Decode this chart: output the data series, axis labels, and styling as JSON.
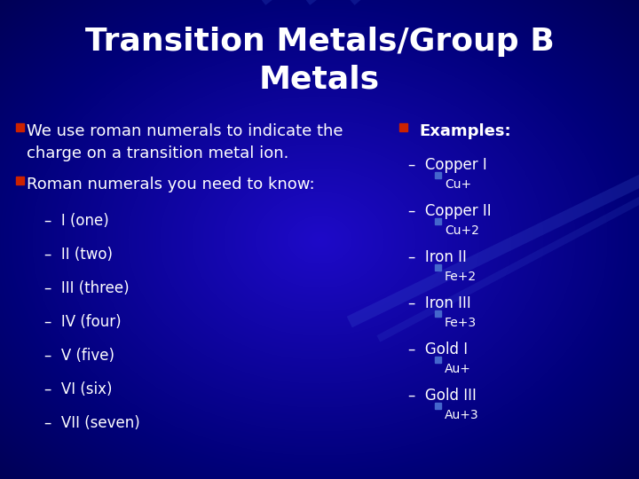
{
  "title_line1": "Transition Metals/Group B",
  "title_line2": "Metals",
  "bg_color": "#0000aa",
  "bg_color_dark": "#000066",
  "text_color": "#ffffff",
  "bullet_color": "#cc2200",
  "blue_sq_color": "#4466cc",
  "title_fontsize": 26,
  "body_fontsize": 13,
  "sub_fontsize": 12,
  "sub2_fontsize": 10,
  "left_bullets": [
    "We use roman numerals to indicate the\ncharge on a transition metal ion.",
    "Roman numerals you need to know:"
  ],
  "left_sub": [
    "I (one)",
    "II (two)",
    "III (three)",
    "IV (four)",
    "V (five)",
    "VI (six)",
    "VII (seven)"
  ],
  "right_header": "Examples:",
  "right_items": [
    {
      "label": "Copper I",
      "sub": "Cu+"
    },
    {
      "label": "Copper II",
      "sub": "Cu+2"
    },
    {
      "label": "Iron II",
      "sub": "Fe+2"
    },
    {
      "label": "Iron III",
      "sub": "Fe+3"
    },
    {
      "label": "Gold I",
      "sub": "Au+"
    },
    {
      "label": "Gold III",
      "sub": "Au+3"
    }
  ]
}
